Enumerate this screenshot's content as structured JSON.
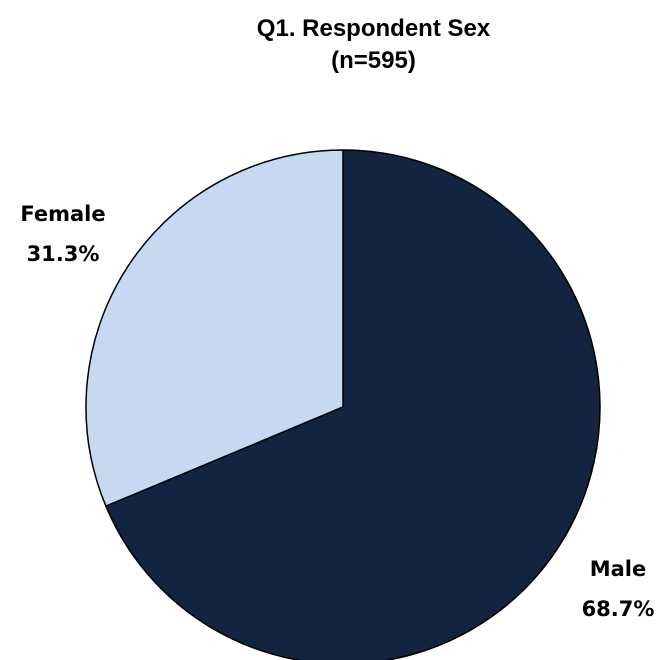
{
  "chart_data": {
    "type": "pie",
    "title": "Q1.  Respondent Sex",
    "subtitle": "(n=595)",
    "slices": [
      {
        "name": "Male",
        "value": 68.7,
        "label": "68.7%",
        "color": "#12243f"
      },
      {
        "name": "Female",
        "value": 31.3,
        "label": "31.3%",
        "color": "#c7d9f0"
      }
    ],
    "start_angle_deg": 0,
    "direction": "clockwise",
    "border_color": "#000000"
  }
}
